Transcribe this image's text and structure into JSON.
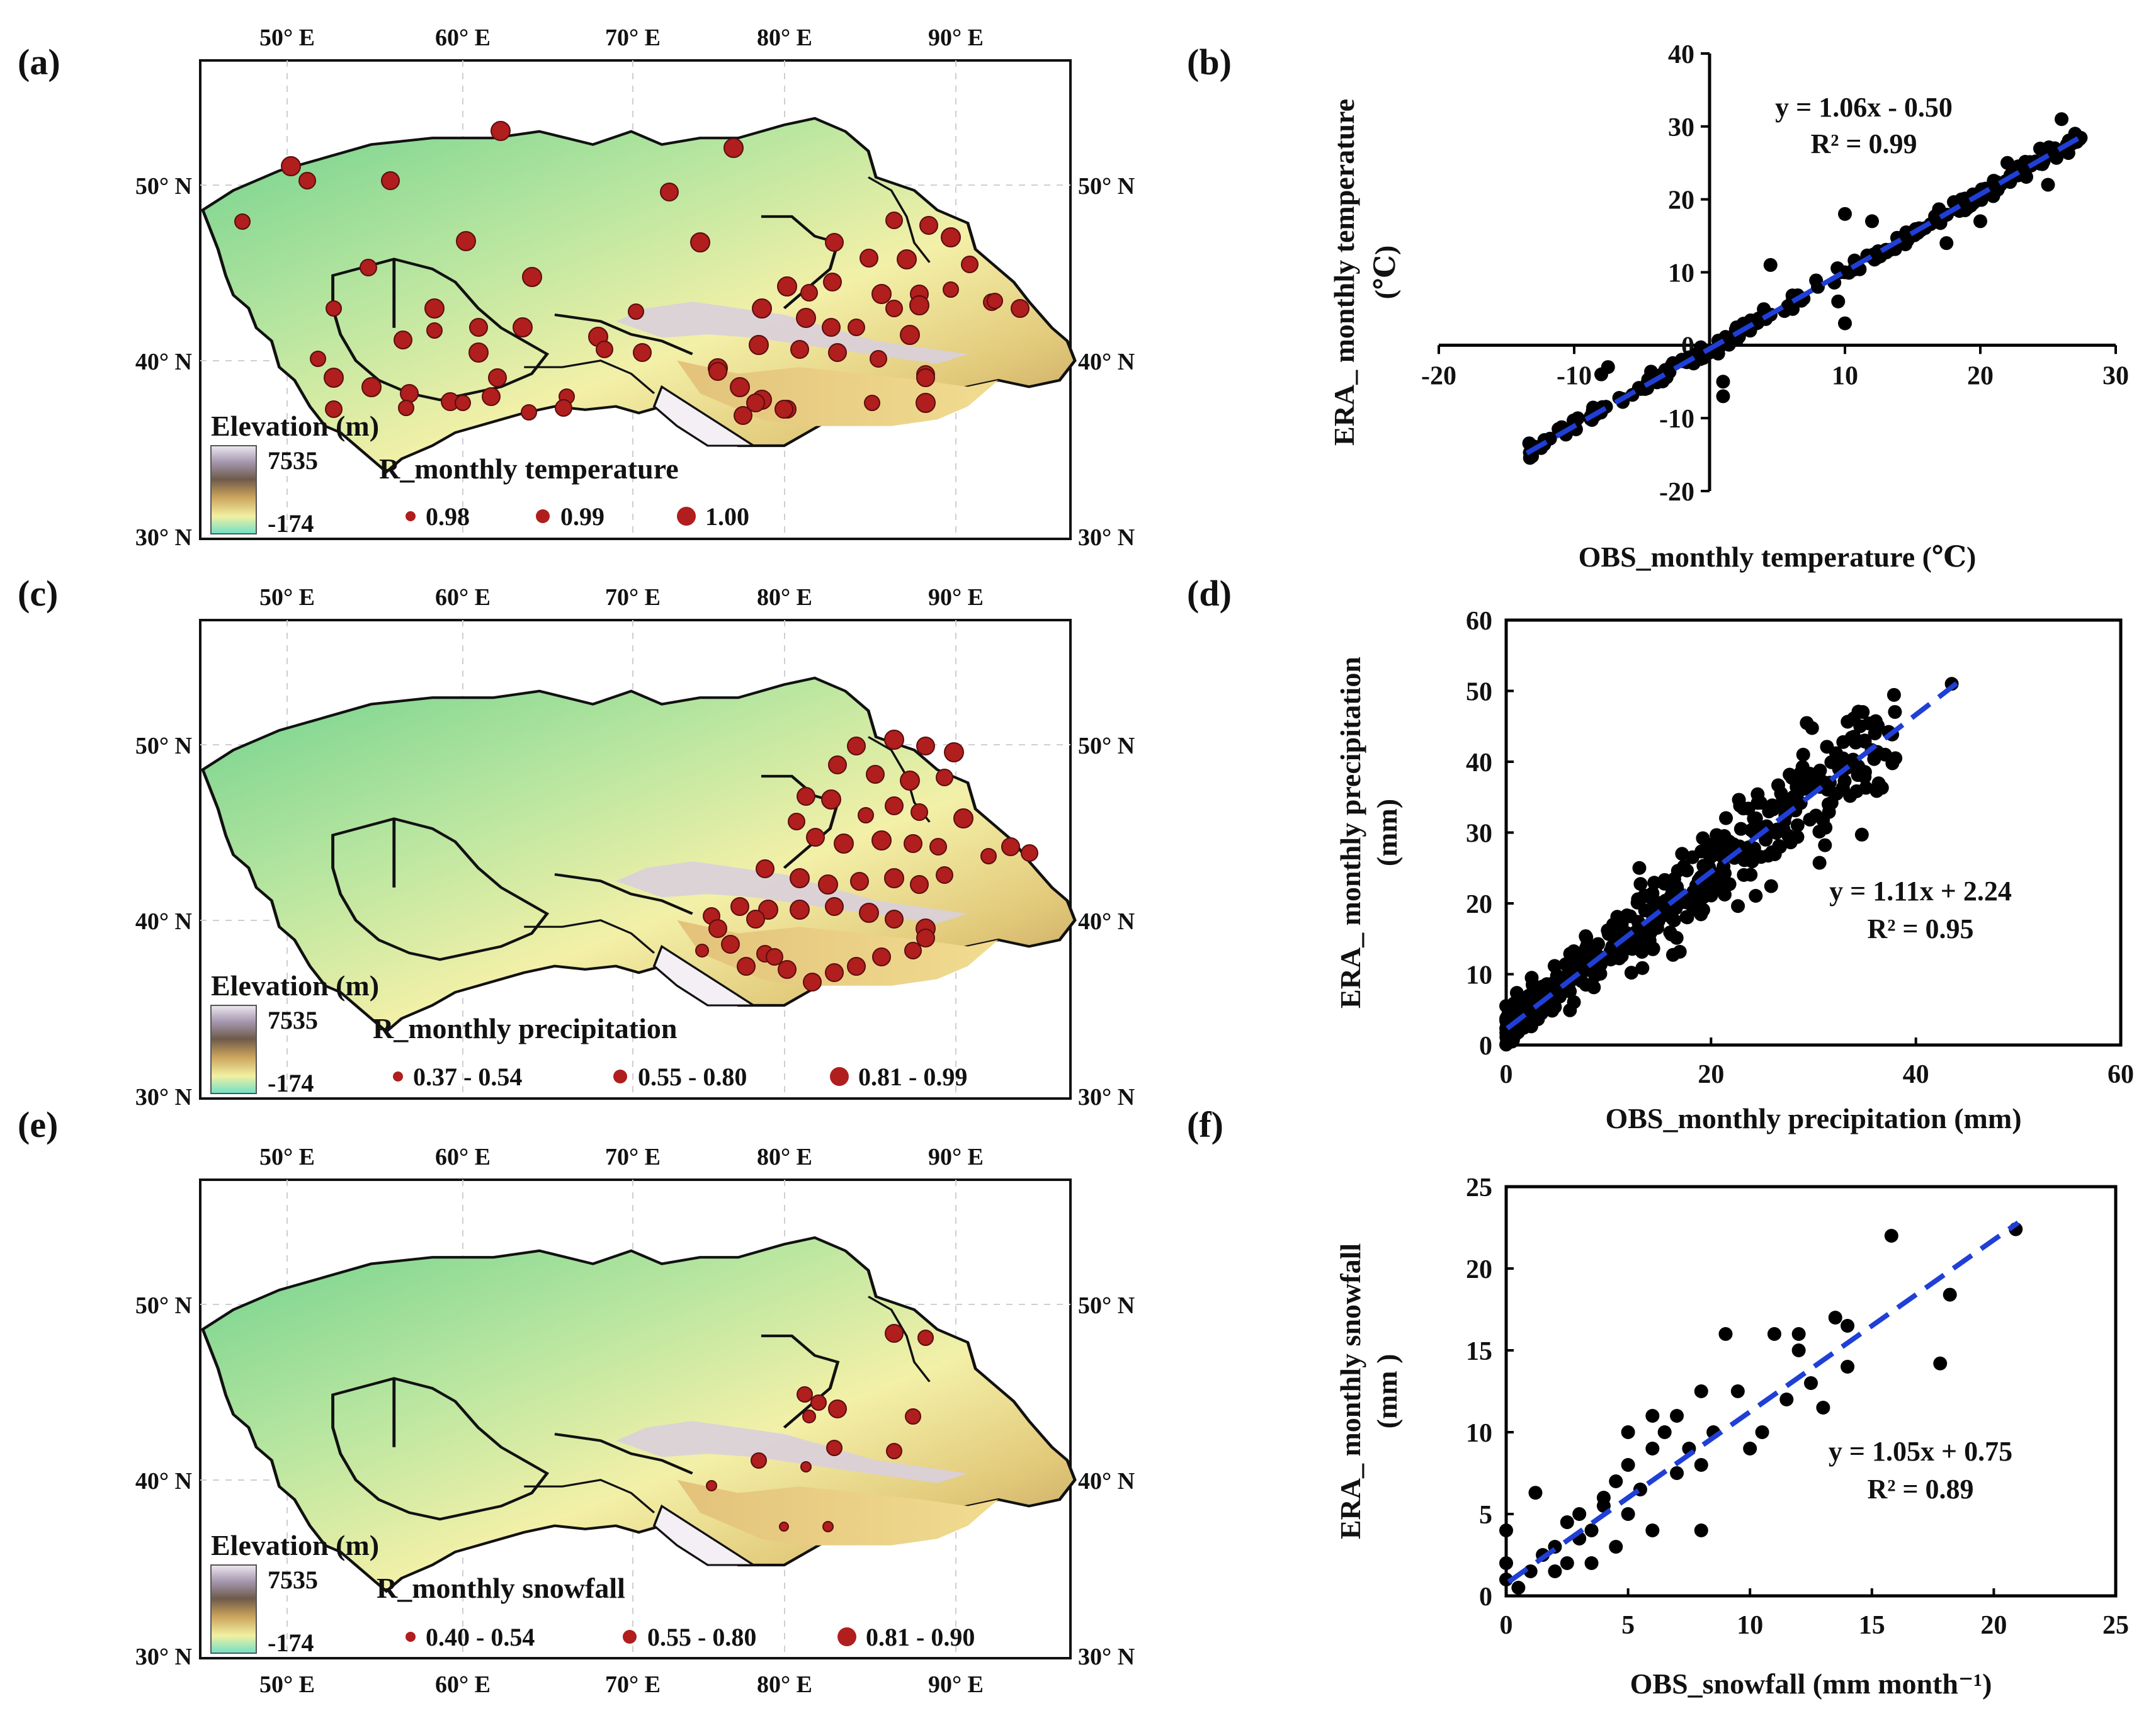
{
  "panels": {
    "a": {
      "label": "(a)",
      "legend_title": "R_monthly temperature",
      "legend": [
        "0.98",
        "0.99",
        "1.00"
      ]
    },
    "b": {
      "label": "(b)"
    },
    "c": {
      "label": "(c)",
      "legend_title": "R_monthly precipitation",
      "legend": [
        "0.37 - 0.54",
        "0.55 - 0.80",
        "0.81 - 0.99"
      ]
    },
    "d": {
      "label": "(d)"
    },
    "e": {
      "label": "(e)",
      "legend_title": "R_monthly snowfall",
      "legend": [
        "0.40 - 0.54",
        "0.55 - 0.80",
        "0.81 - 0.90"
      ]
    },
    "f": {
      "label": "(f)"
    }
  },
  "map": {
    "lon_labels": [
      "50° E",
      "60° E",
      "70° E",
      "80° E",
      "90° E"
    ],
    "lat_labels": [
      "50° N",
      "40° N",
      "30° N"
    ],
    "elevation": {
      "title": "Elevation (m)",
      "max": "7535",
      "min": "-174"
    }
  },
  "colors": {
    "station": "#b01e1e",
    "scatter": "#000000",
    "fit": "#1f3fd6"
  },
  "chart_data": [
    {
      "type": "scatter",
      "id": "b",
      "xlabel": "OBS_monthly temperature (℃)",
      "ylabel": "ERA_ monthly temperature",
      "ylabel2": "(℃)",
      "xlim": [
        -20,
        30
      ],
      "ylim": [
        -20,
        40
      ],
      "xticks": [
        -20,
        -10,
        0,
        10,
        20,
        30
      ],
      "yticks": [
        -20,
        -10,
        0,
        10,
        20,
        30,
        40
      ],
      "equation": "y = 1.06x - 0.50",
      "r2": "R² = 0.99",
      "slope": 1.06,
      "intercept": -0.5
    },
    {
      "type": "scatter",
      "id": "d",
      "xlabel": "OBS_monthly precipitation (mm)",
      "ylabel": "ERA_ monthly precipitation",
      "ylabel2": "(mm)",
      "xlim": [
        0,
        60
      ],
      "ylim": [
        0,
        60
      ],
      "xticks": [
        0,
        20,
        40,
        60
      ],
      "yticks": [
        0,
        10,
        20,
        30,
        40,
        50,
        60
      ],
      "equation": "y = 1.11x + 2.24",
      "r2": "R² = 0.95",
      "slope": 1.11,
      "intercept": 2.24
    },
    {
      "type": "scatter",
      "id": "f",
      "xlabel": "OBS_snowfall (mm month⁻¹)",
      "ylabel": "ERA_ monthly snowfall",
      "ylabel2": "(mm )",
      "xlim": [
        0,
        25
      ],
      "ylim": [
        0,
        25
      ],
      "xticks": [
        0,
        5,
        10,
        15,
        20,
        25
      ],
      "yticks": [
        0,
        5,
        10,
        15,
        20,
        25
      ],
      "equation": "y = 1.05x + 0.75",
      "r2": "R² = 0.89",
      "slope": 1.05,
      "intercept": 0.75,
      "points": [
        [
          0,
          4
        ],
        [
          0,
          2
        ],
        [
          0,
          1
        ],
        [
          0.5,
          0.5
        ],
        [
          1,
          1.5
        ],
        [
          1.2,
          6.3
        ],
        [
          1.5,
          2.5
        ],
        [
          2,
          3
        ],
        [
          2,
          1.5
        ],
        [
          2.5,
          4.5
        ],
        [
          2.5,
          2
        ],
        [
          3,
          3.5
        ],
        [
          3,
          5
        ],
        [
          3.5,
          4
        ],
        [
          3.5,
          2
        ],
        [
          4,
          6
        ],
        [
          4,
          5.5
        ],
        [
          4.5,
          7
        ],
        [
          4.5,
          3
        ],
        [
          5,
          10
        ],
        [
          5,
          8
        ],
        [
          5,
          5
        ],
        [
          5.5,
          6.5
        ],
        [
          6,
          11
        ],
        [
          6,
          9
        ],
        [
          6,
          4
        ],
        [
          6.5,
          10
        ],
        [
          7,
          7.5
        ],
        [
          7,
          11
        ],
        [
          7.5,
          9
        ],
        [
          8,
          8
        ],
        [
          8,
          12.5
        ],
        [
          8,
          4
        ],
        [
          8.5,
          10
        ],
        [
          9,
          16
        ],
        [
          9.5,
          12.5
        ],
        [
          10,
          9
        ],
        [
          10.5,
          10
        ],
        [
          11,
          16
        ],
        [
          11.5,
          12
        ],
        [
          12,
          16
        ],
        [
          12,
          15
        ],
        [
          12.5,
          13
        ],
        [
          13,
          11.5
        ],
        [
          13.5,
          17
        ],
        [
          14,
          14
        ],
        [
          14,
          16.5
        ],
        [
          15.8,
          22
        ],
        [
          17.8,
          14.2
        ],
        [
          18.2,
          18.4
        ],
        [
          20.9,
          22.4
        ]
      ]
    }
  ]
}
